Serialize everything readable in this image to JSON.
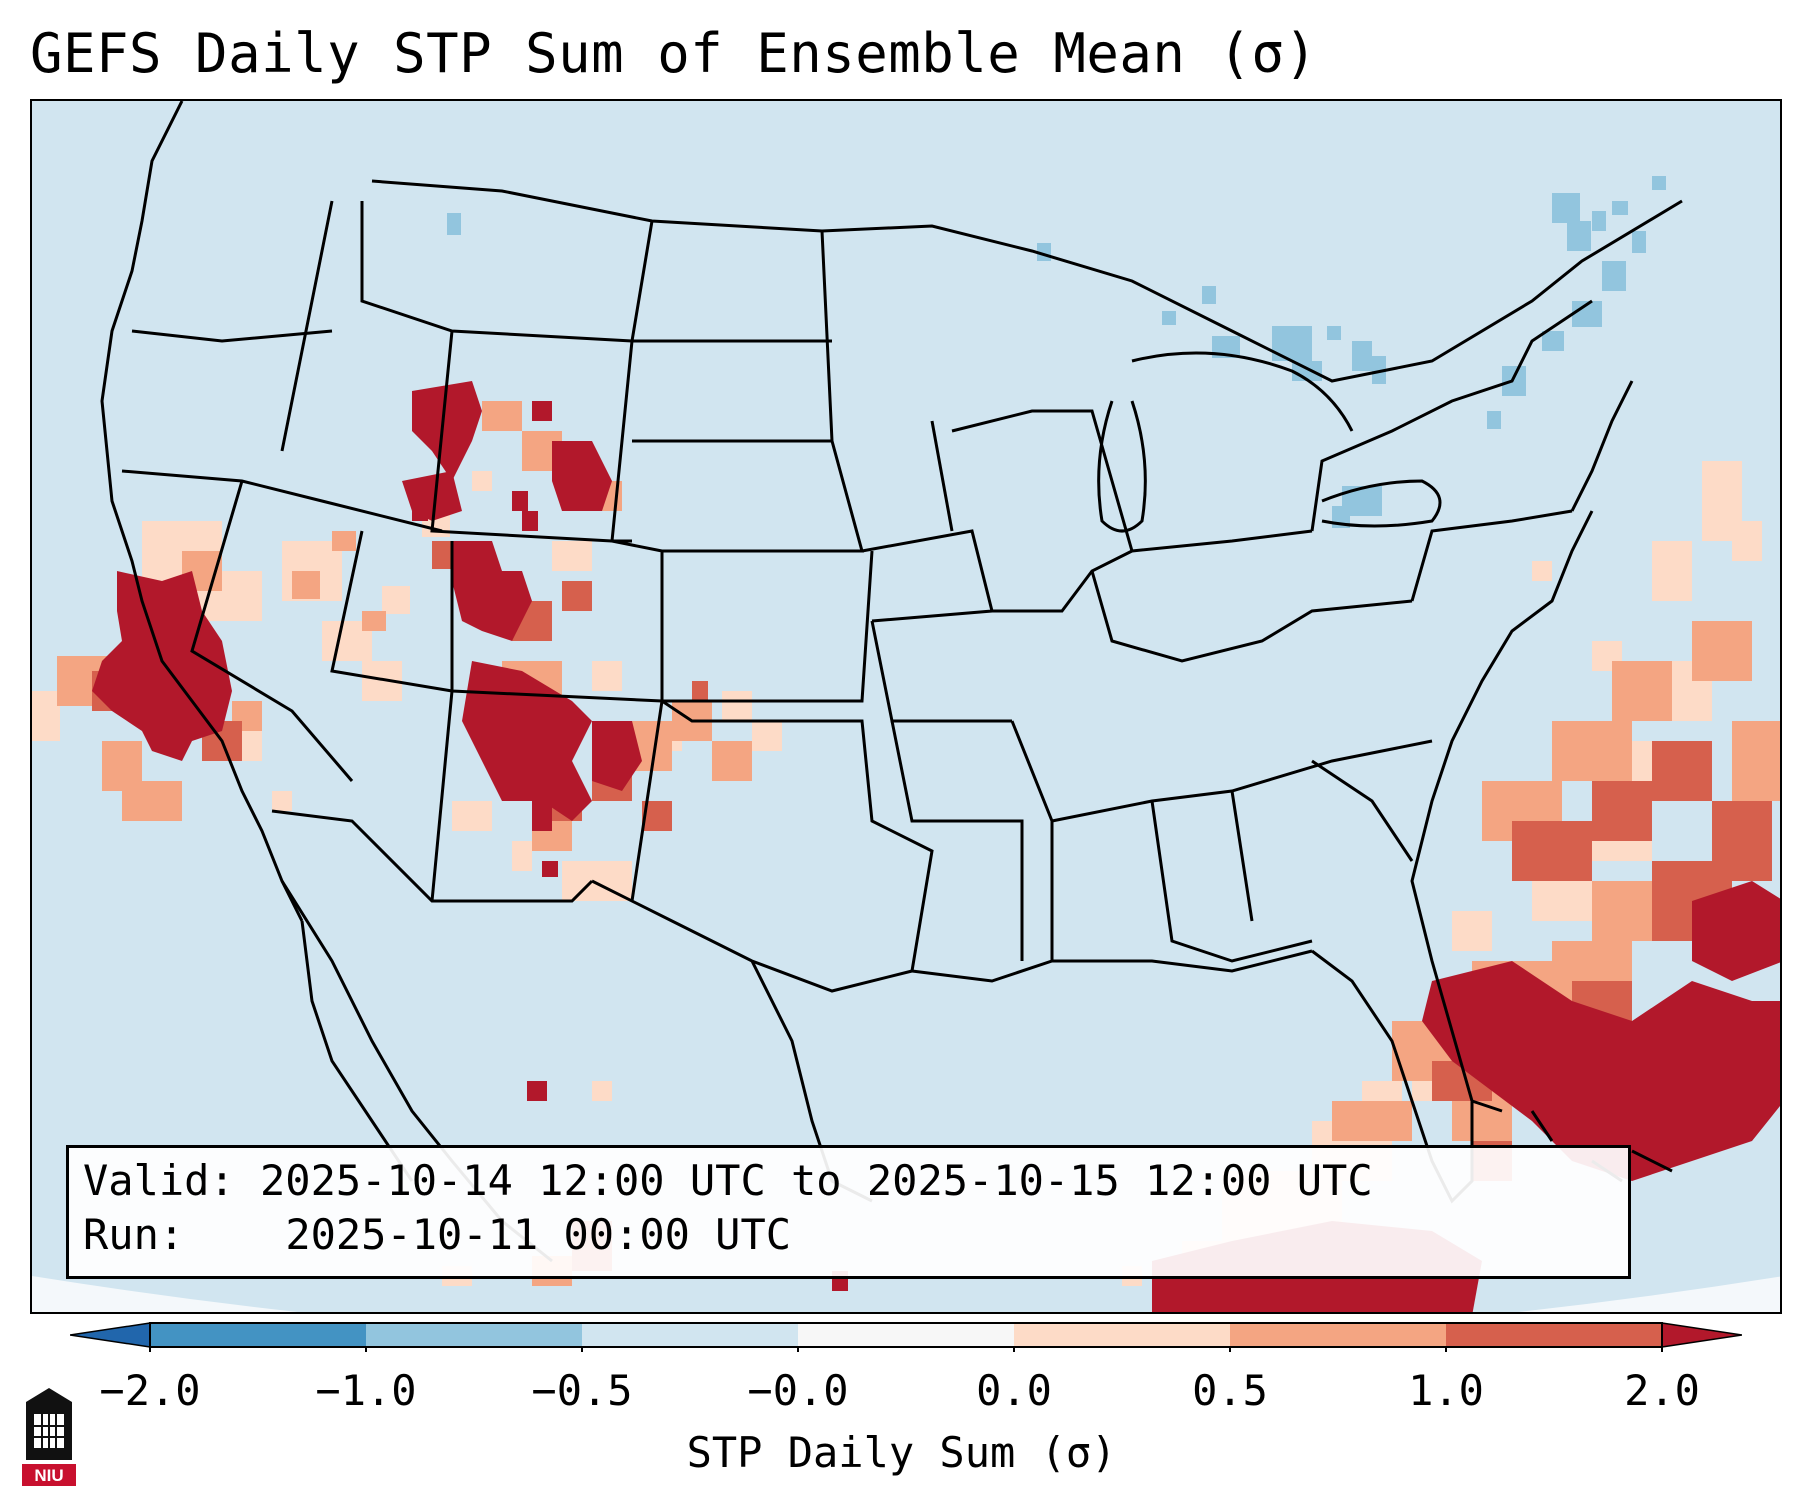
{
  "title": "GEFS Daily STP Sum of Ensemble Mean (σ)",
  "info": {
    "valid_label": "Valid:",
    "valid_value": "2025-10-14 12:00 UTC to 2025-10-15 12:00 UTC",
    "run_label": "Run:",
    "run_value": "2025-10-11 00:00 UTC"
  },
  "colorbar": {
    "label": "STP Daily Sum (σ)",
    "tick_labels": [
      "−2.0",
      "−1.0",
      "−0.5",
      "−0.0",
      "0.0",
      "0.5",
      "1.0",
      "2.0"
    ],
    "bins": [
      {
        "range": "< -2.0",
        "color": "#2166ac"
      },
      {
        "range": "-2.0 to -1.0",
        "color": "#4393c3"
      },
      {
        "range": "-1.0 to -0.5",
        "color": "#92c5de"
      },
      {
        "range": "-0.5 to -0.0",
        "color": "#d1e5f0"
      },
      {
        "range": "-0.0 to 0.0",
        "color": "#f7f7f7"
      },
      {
        "range": "0.0 to 0.5",
        "color": "#fddbc7"
      },
      {
        "range": "0.5 to 1.0",
        "color": "#f4a582"
      },
      {
        "range": "1.0 to 2.0",
        "color": "#d6604d"
      },
      {
        "range": "> 2.0",
        "color": "#b2182b"
      }
    ]
  },
  "map": {
    "background_color": "#d1e5f0",
    "region": "Continental United States",
    "features": [
      {
        "name": "West Coast / Central California",
        "category": "> 2.0"
      },
      {
        "name": "Idaho / Montana / Wyoming",
        "category": "> 2.0"
      },
      {
        "name": "Colorado / Utah",
        "category": "1.0 to 2.0"
      },
      {
        "name": "New Mexico / Arizona",
        "category": "> 2.0"
      },
      {
        "name": "Atlantic / Bahamas",
        "category": "> 2.0"
      },
      {
        "name": "Great Lakes / Northeast",
        "category": "-1.0 to -0.5"
      }
    ]
  },
  "logo": {
    "text": "NIU"
  }
}
